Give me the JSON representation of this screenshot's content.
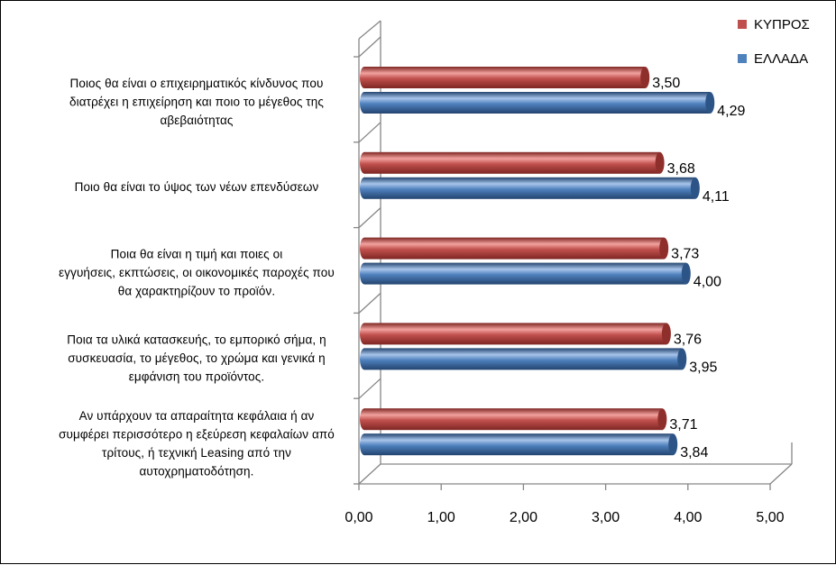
{
  "chart_data": {
    "type": "bar",
    "orientation": "horizontal",
    "style": "3d-cylinder",
    "categories": [
      [
        "Ποιος θα είναι ο επιχειρηματικός κίνδυνος που",
        "διατρέχει η επιχείρηση και ποιο το μέγεθος της",
        "αβεβαιότητας"
      ],
      [
        "Ποιο θα είναι το ύψος των νέων επενδύσεων"
      ],
      [
        "Ποια θα είναι η τιμή και ποιες οι",
        "εγγυήσεις, εκπτώσεις, οι οικονομικές παροχές που",
        "θα χαρακτηρίζουν το προϊόν."
      ],
      [
        "Ποια τα υλικά κατασκευής, το εμπορικό σήμα, η",
        "συσκευασία, το μέγεθος, το χρώμα και γενικά η",
        "εμφάνιση του προϊόντος."
      ],
      [
        "Αν υπάρχουν τα απαραίτητα κεφάλαια ή αν",
        "συμφέρει περισσότερο η εξεύρεση κεφαλαίων από",
        "τρίτους, ή τεχνική Leasing από την",
        "αυτοχρηματοδότηση."
      ]
    ],
    "series": [
      {
        "name": "ΚΥΠΡΟΣ",
        "color": "#c0504d",
        "values": [
          3.5,
          3.68,
          3.73,
          3.76,
          3.71
        ],
        "value_labels": [
          "3,50",
          "3,68",
          "3,73",
          "3,76",
          "3,71"
        ]
      },
      {
        "name": "ΕΛΛΑΔΑ",
        "color": "#4f81bd",
        "values": [
          4.29,
          4.11,
          4.0,
          3.95,
          3.84
        ],
        "value_labels": [
          "4,29",
          "4,11",
          "4,00",
          "3,95",
          "3,84"
        ]
      }
    ],
    "x_ticks": [
      0,
      1,
      2,
      3,
      4,
      5
    ],
    "x_tick_labels": [
      "0,00",
      "1,00",
      "2,00",
      "3,00",
      "4,00",
      "5,00"
    ],
    "xlim": [
      0,
      5
    ],
    "grid": false,
    "legend_position": "top-right"
  }
}
